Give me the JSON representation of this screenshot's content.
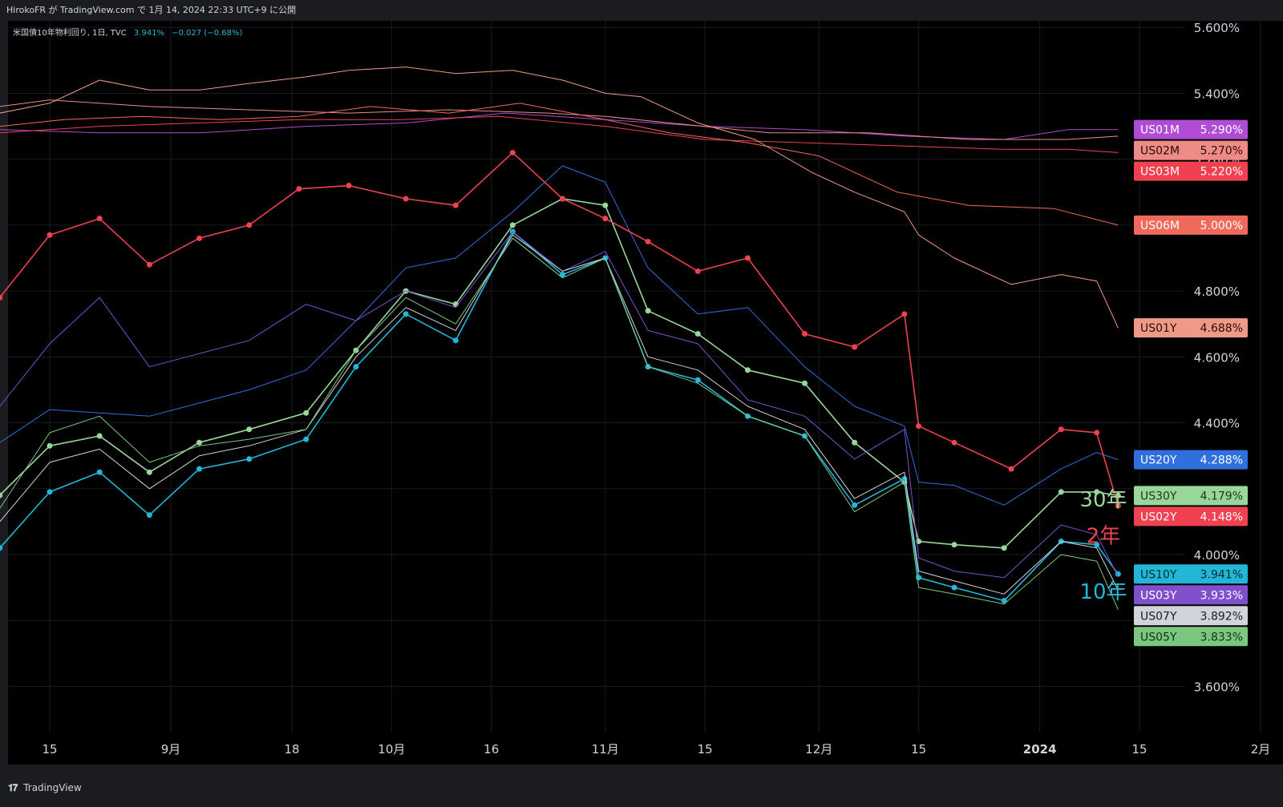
{
  "header": {
    "published": "HirokoFR が TradingView.com で 1月 14, 2024 22:33 UTC+9 に公開"
  },
  "legend": {
    "symbol": "米国債10年物利回り, 1日, TVC",
    "value": "3.941%",
    "change": "−0.027 (−0.68%)"
  },
  "footer": {
    "brand": "TradingView",
    "logo": "tv-logo-icon"
  },
  "annotations": [
    {
      "text": "30年",
      "color": "#98d69a",
      "y": 4.17
    },
    {
      "text": "2年",
      "color": "#ef4150",
      "y": 4.06
    },
    {
      "text": "10年",
      "color": "#22b7d6",
      "y": 3.89
    }
  ],
  "chart_data": {
    "type": "line",
    "ylim": [
      3.46,
      5.62
    ],
    "y_ticks": [
      3.6,
      3.8,
      4.0,
      4.2,
      4.4,
      4.6,
      4.8,
      5.0,
      5.2,
      5.4,
      5.6
    ],
    "y_tick_labels": [
      "3.600%",
      "",
      "4.000%",
      "",
      "4.400%",
      "4.600%",
      "4.800%",
      "",
      "5.200%",
      "5.400%",
      "5.600%"
    ],
    "grid": true,
    "x_ticks": [
      {
        "label": "15",
        "date": "2023-08-15"
      },
      {
        "label": "9月",
        "date": "2023-09-01"
      },
      {
        "label": "18",
        "date": "2023-09-18"
      },
      {
        "label": "10月",
        "date": "2023-10-02"
      },
      {
        "label": "16",
        "date": "2023-10-16"
      },
      {
        "label": "11月",
        "date": "2023-11-01"
      },
      {
        "label": "15",
        "date": "2023-11-15"
      },
      {
        "label": "12月",
        "date": "2023-12-01"
      },
      {
        "label": "15",
        "date": "2023-12-15"
      },
      {
        "label": "2024",
        "date": "2024-01-01"
      },
      {
        "label": "15",
        "date": "2024-01-15"
      },
      {
        "label": "2月",
        "date": "2024-02-01"
      }
    ],
    "series": [
      {
        "name": "US01M",
        "color": "#b04bd3",
        "width": 1,
        "dots": false,
        "badge_text": "#ffffff",
        "last": "5.290%",
        "x": [
          "2023-08-08",
          "2023-08-22",
          "2023-09-05",
          "2023-09-20",
          "2023-10-04",
          "2023-10-18",
          "2023-11-01",
          "2023-11-15",
          "2023-11-29",
          "2023-12-13",
          "2023-12-27",
          "2024-01-05",
          "2024-01-12"
        ],
        "values": [
          5.29,
          5.28,
          5.28,
          5.3,
          5.31,
          5.34,
          5.32,
          5.3,
          5.29,
          5.27,
          5.26,
          5.29,
          5.29
        ]
      },
      {
        "name": "US02M",
        "color": "#ef8b86",
        "width": 1,
        "dots": false,
        "badge_text": "#2a0a0a",
        "last": "5.270%",
        "x": [
          "2023-08-08",
          "2023-08-15",
          "2023-08-29",
          "2023-09-12",
          "2023-09-26",
          "2023-10-10",
          "2023-10-24",
          "2023-11-01",
          "2023-11-10",
          "2023-11-24",
          "2023-12-08",
          "2023-12-22",
          "2024-01-05",
          "2024-01-12"
        ],
        "values": [
          5.36,
          5.38,
          5.36,
          5.35,
          5.34,
          5.35,
          5.34,
          5.33,
          5.31,
          5.28,
          5.28,
          5.26,
          5.26,
          5.27
        ]
      },
      {
        "name": "US03M",
        "color": "#ef4150",
        "width": 1,
        "dots": false,
        "badge_text": "#ffffff",
        "last": "5.220%",
        "x": [
          "2023-08-08",
          "2023-08-22",
          "2023-09-05",
          "2023-09-19",
          "2023-10-03",
          "2023-10-17",
          "2023-11-01",
          "2023-11-15",
          "2023-11-29",
          "2023-12-13",
          "2023-12-27",
          "2024-01-05",
          "2024-01-12"
        ],
        "values": [
          5.28,
          5.3,
          5.31,
          5.32,
          5.32,
          5.33,
          5.3,
          5.26,
          5.25,
          5.24,
          5.23,
          5.23,
          5.22
        ]
      },
      {
        "name": "US06M",
        "color": "#f06a5c",
        "width": 1,
        "dots": false,
        "badge_text": "#ffffff",
        "last": "5.000%",
        "x": [
          "2023-08-08",
          "2023-08-17",
          "2023-08-28",
          "2023-09-08",
          "2023-09-19",
          "2023-09-29",
          "2023-10-10",
          "2023-10-20",
          "2023-11-01",
          "2023-11-10",
          "2023-11-21",
          "2023-12-01",
          "2023-12-12",
          "2023-12-22",
          "2024-01-03",
          "2024-01-12"
        ],
        "values": [
          5.3,
          5.32,
          5.33,
          5.32,
          5.33,
          5.36,
          5.34,
          5.37,
          5.32,
          5.28,
          5.25,
          5.21,
          5.1,
          5.06,
          5.05,
          5.0
        ]
      },
      {
        "name": "US01Y",
        "color": "#ef9a87",
        "width": 1,
        "dots": false,
        "badge_text": "#2a0a0a",
        "last": "4.688%",
        "x": [
          "2023-08-08",
          "2023-08-15",
          "2023-08-22",
          "2023-08-29",
          "2023-09-05",
          "2023-09-12",
          "2023-09-20",
          "2023-09-26",
          "2023-10-04",
          "2023-10-11",
          "2023-10-19",
          "2023-10-26",
          "2023-11-01",
          "2023-11-06",
          "2023-11-14",
          "2023-11-22",
          "2023-11-30",
          "2023-12-06",
          "2023-12-13",
          "2023-12-15",
          "2023-12-20",
          "2023-12-28",
          "2024-01-04",
          "2024-01-09",
          "2024-01-12"
        ],
        "values": [
          5.34,
          5.37,
          5.44,
          5.41,
          5.41,
          5.43,
          5.45,
          5.47,
          5.48,
          5.46,
          5.47,
          5.44,
          5.4,
          5.39,
          5.31,
          5.26,
          5.16,
          5.1,
          5.04,
          4.97,
          4.9,
          4.82,
          4.85,
          4.83,
          4.688
        ]
      },
      {
        "name": "US20Y",
        "color": "#2f6fde",
        "width": 1,
        "dots": false,
        "badge_text": "#ffffff",
        "last": "4.288%",
        "x": [
          "2023-08-08",
          "2023-08-15",
          "2023-08-22",
          "2023-08-29",
          "2023-09-05",
          "2023-09-12",
          "2023-09-20",
          "2023-09-27",
          "2023-10-04",
          "2023-10-11",
          "2023-10-19",
          "2023-10-26",
          "2023-11-01",
          "2023-11-07",
          "2023-11-14",
          "2023-11-21",
          "2023-11-29",
          "2023-12-06",
          "2023-12-13",
          "2023-12-15",
          "2023-12-20",
          "2023-12-27",
          "2024-01-04",
          "2024-01-09",
          "2024-01-12"
        ],
        "values": [
          4.34,
          4.44,
          4.43,
          4.42,
          4.46,
          4.5,
          4.56,
          4.71,
          4.87,
          4.9,
          5.04,
          5.18,
          5.13,
          4.87,
          4.73,
          4.75,
          4.57,
          4.45,
          4.39,
          4.22,
          4.21,
          4.15,
          4.26,
          4.31,
          4.288
        ]
      },
      {
        "name": "US30Y",
        "color": "#98d69a",
        "width": 1.6,
        "dots": true,
        "badge_text": "#1b3a1c",
        "last": "4.179%",
        "x": [
          "2023-08-08",
          "2023-08-15",
          "2023-08-22",
          "2023-08-29",
          "2023-09-05",
          "2023-09-12",
          "2023-09-20",
          "2023-09-27",
          "2023-10-04",
          "2023-10-11",
          "2023-10-19",
          "2023-10-26",
          "2023-11-01",
          "2023-11-07",
          "2023-11-14",
          "2023-11-21",
          "2023-11-29",
          "2023-12-06",
          "2023-12-13",
          "2023-12-15",
          "2023-12-20",
          "2023-12-27",
          "2024-01-04",
          "2024-01-09",
          "2024-01-12"
        ],
        "values": [
          4.18,
          4.33,
          4.36,
          4.25,
          4.34,
          4.38,
          4.43,
          4.62,
          4.8,
          4.76,
          5.0,
          5.08,
          5.06,
          4.74,
          4.67,
          4.56,
          4.52,
          4.34,
          4.22,
          4.04,
          4.03,
          4.02,
          4.19,
          4.19,
          4.179
        ]
      },
      {
        "name": "US02Y",
        "color": "#ef4150",
        "width": 1.6,
        "dots": true,
        "badge_text": "#ffffff",
        "last": "4.148%",
        "x": [
          "2023-08-08",
          "2023-08-15",
          "2023-08-22",
          "2023-08-29",
          "2023-09-05",
          "2023-09-12",
          "2023-09-19",
          "2023-09-26",
          "2023-10-04",
          "2023-10-11",
          "2023-10-19",
          "2023-10-26",
          "2023-11-01",
          "2023-11-07",
          "2023-11-14",
          "2023-11-21",
          "2023-11-29",
          "2023-12-06",
          "2023-12-13",
          "2023-12-15",
          "2023-12-20",
          "2023-12-28",
          "2024-01-04",
          "2024-01-09",
          "2024-01-12"
        ],
        "values": [
          4.78,
          4.97,
          5.02,
          4.88,
          4.96,
          5.0,
          5.11,
          5.12,
          5.08,
          5.06,
          5.22,
          5.08,
          5.02,
          4.95,
          4.86,
          4.9,
          4.67,
          4.63,
          4.73,
          4.39,
          4.34,
          4.26,
          4.38,
          4.37,
          4.148
        ]
      },
      {
        "name": "US10Y",
        "color": "#22b7d6",
        "width": 1.6,
        "dots": true,
        "badge_text": "#0b2a30",
        "last": "3.941%",
        "x": [
          "2023-08-08",
          "2023-08-15",
          "2023-08-22",
          "2023-08-29",
          "2023-09-05",
          "2023-09-12",
          "2023-09-20",
          "2023-09-27",
          "2023-10-04",
          "2023-10-11",
          "2023-10-19",
          "2023-10-26",
          "2023-11-01",
          "2023-11-07",
          "2023-11-14",
          "2023-11-21",
          "2023-11-29",
          "2023-12-06",
          "2023-12-13",
          "2023-12-15",
          "2023-12-20",
          "2023-12-27",
          "2024-01-04",
          "2024-01-09",
          "2024-01-12"
        ],
        "values": [
          4.02,
          4.19,
          4.25,
          4.12,
          4.26,
          4.29,
          4.35,
          4.57,
          4.73,
          4.65,
          4.98,
          4.85,
          4.9,
          4.57,
          4.53,
          4.42,
          4.36,
          4.15,
          4.23,
          3.93,
          3.9,
          3.86,
          4.04,
          4.03,
          3.941
        ]
      },
      {
        "name": "US03Y",
        "color": "#7f4fcc",
        "width": 1,
        "dots": false,
        "badge_text": "#ffffff",
        "last": "3.933%",
        "x": [
          "2023-08-08",
          "2023-08-15",
          "2023-08-22",
          "2023-08-29",
          "2023-09-05",
          "2023-09-12",
          "2023-09-20",
          "2023-09-27",
          "2023-10-04",
          "2023-10-11",
          "2023-10-19",
          "2023-10-26",
          "2023-11-01",
          "2023-11-07",
          "2023-11-14",
          "2023-11-21",
          "2023-11-29",
          "2023-12-06",
          "2023-12-13",
          "2023-12-15",
          "2023-12-20",
          "2023-12-27",
          "2024-01-04",
          "2024-01-09",
          "2024-01-12"
        ],
        "values": [
          4.45,
          4.64,
          4.78,
          4.57,
          4.61,
          4.65,
          4.76,
          4.71,
          4.8,
          4.75,
          4.98,
          4.86,
          4.92,
          4.68,
          4.64,
          4.47,
          4.42,
          4.29,
          4.38,
          3.99,
          3.95,
          3.93,
          4.09,
          4.06,
          3.933
        ]
      },
      {
        "name": "US07Y",
        "color": "#d1d4dc",
        "width": 1,
        "dots": false,
        "badge_text": "#1b1c20",
        "last": "3.892%",
        "x": [
          "2023-08-08",
          "2023-08-15",
          "2023-08-22",
          "2023-08-29",
          "2023-09-05",
          "2023-09-12",
          "2023-09-20",
          "2023-09-27",
          "2023-10-04",
          "2023-10-11",
          "2023-10-19",
          "2023-10-26",
          "2023-11-01",
          "2023-11-07",
          "2023-11-14",
          "2023-11-21",
          "2023-11-29",
          "2023-12-06",
          "2023-12-13",
          "2023-12-15",
          "2023-12-20",
          "2023-12-27",
          "2024-01-04",
          "2024-01-09",
          "2024-01-12"
        ],
        "values": [
          4.1,
          4.28,
          4.32,
          4.2,
          4.3,
          4.33,
          4.38,
          4.6,
          4.75,
          4.68,
          4.97,
          4.86,
          4.9,
          4.6,
          4.56,
          4.45,
          4.38,
          4.17,
          4.25,
          3.95,
          3.92,
          3.88,
          4.04,
          4.02,
          3.892
        ]
      },
      {
        "name": "US05Y",
        "color": "#7cc77e",
        "width": 1,
        "dots": false,
        "badge_text": "#14301a",
        "last": "3.833%",
        "x": [
          "2023-08-08",
          "2023-08-15",
          "2023-08-22",
          "2023-08-29",
          "2023-09-05",
          "2023-09-12",
          "2023-09-20",
          "2023-09-27",
          "2023-10-04",
          "2023-10-11",
          "2023-10-19",
          "2023-10-26",
          "2023-11-01",
          "2023-11-07",
          "2023-11-14",
          "2023-11-21",
          "2023-11-29",
          "2023-12-06",
          "2023-12-13",
          "2023-12-15",
          "2023-12-20",
          "2023-12-27",
          "2024-01-04",
          "2024-01-09",
          "2024-01-12"
        ],
        "values": [
          4.14,
          4.37,
          4.42,
          4.28,
          4.33,
          4.35,
          4.38,
          4.62,
          4.78,
          4.7,
          4.96,
          4.84,
          4.9,
          4.57,
          4.52,
          4.42,
          4.36,
          4.13,
          4.22,
          3.9,
          3.88,
          3.85,
          4.0,
          3.98,
          3.833
        ]
      }
    ]
  }
}
